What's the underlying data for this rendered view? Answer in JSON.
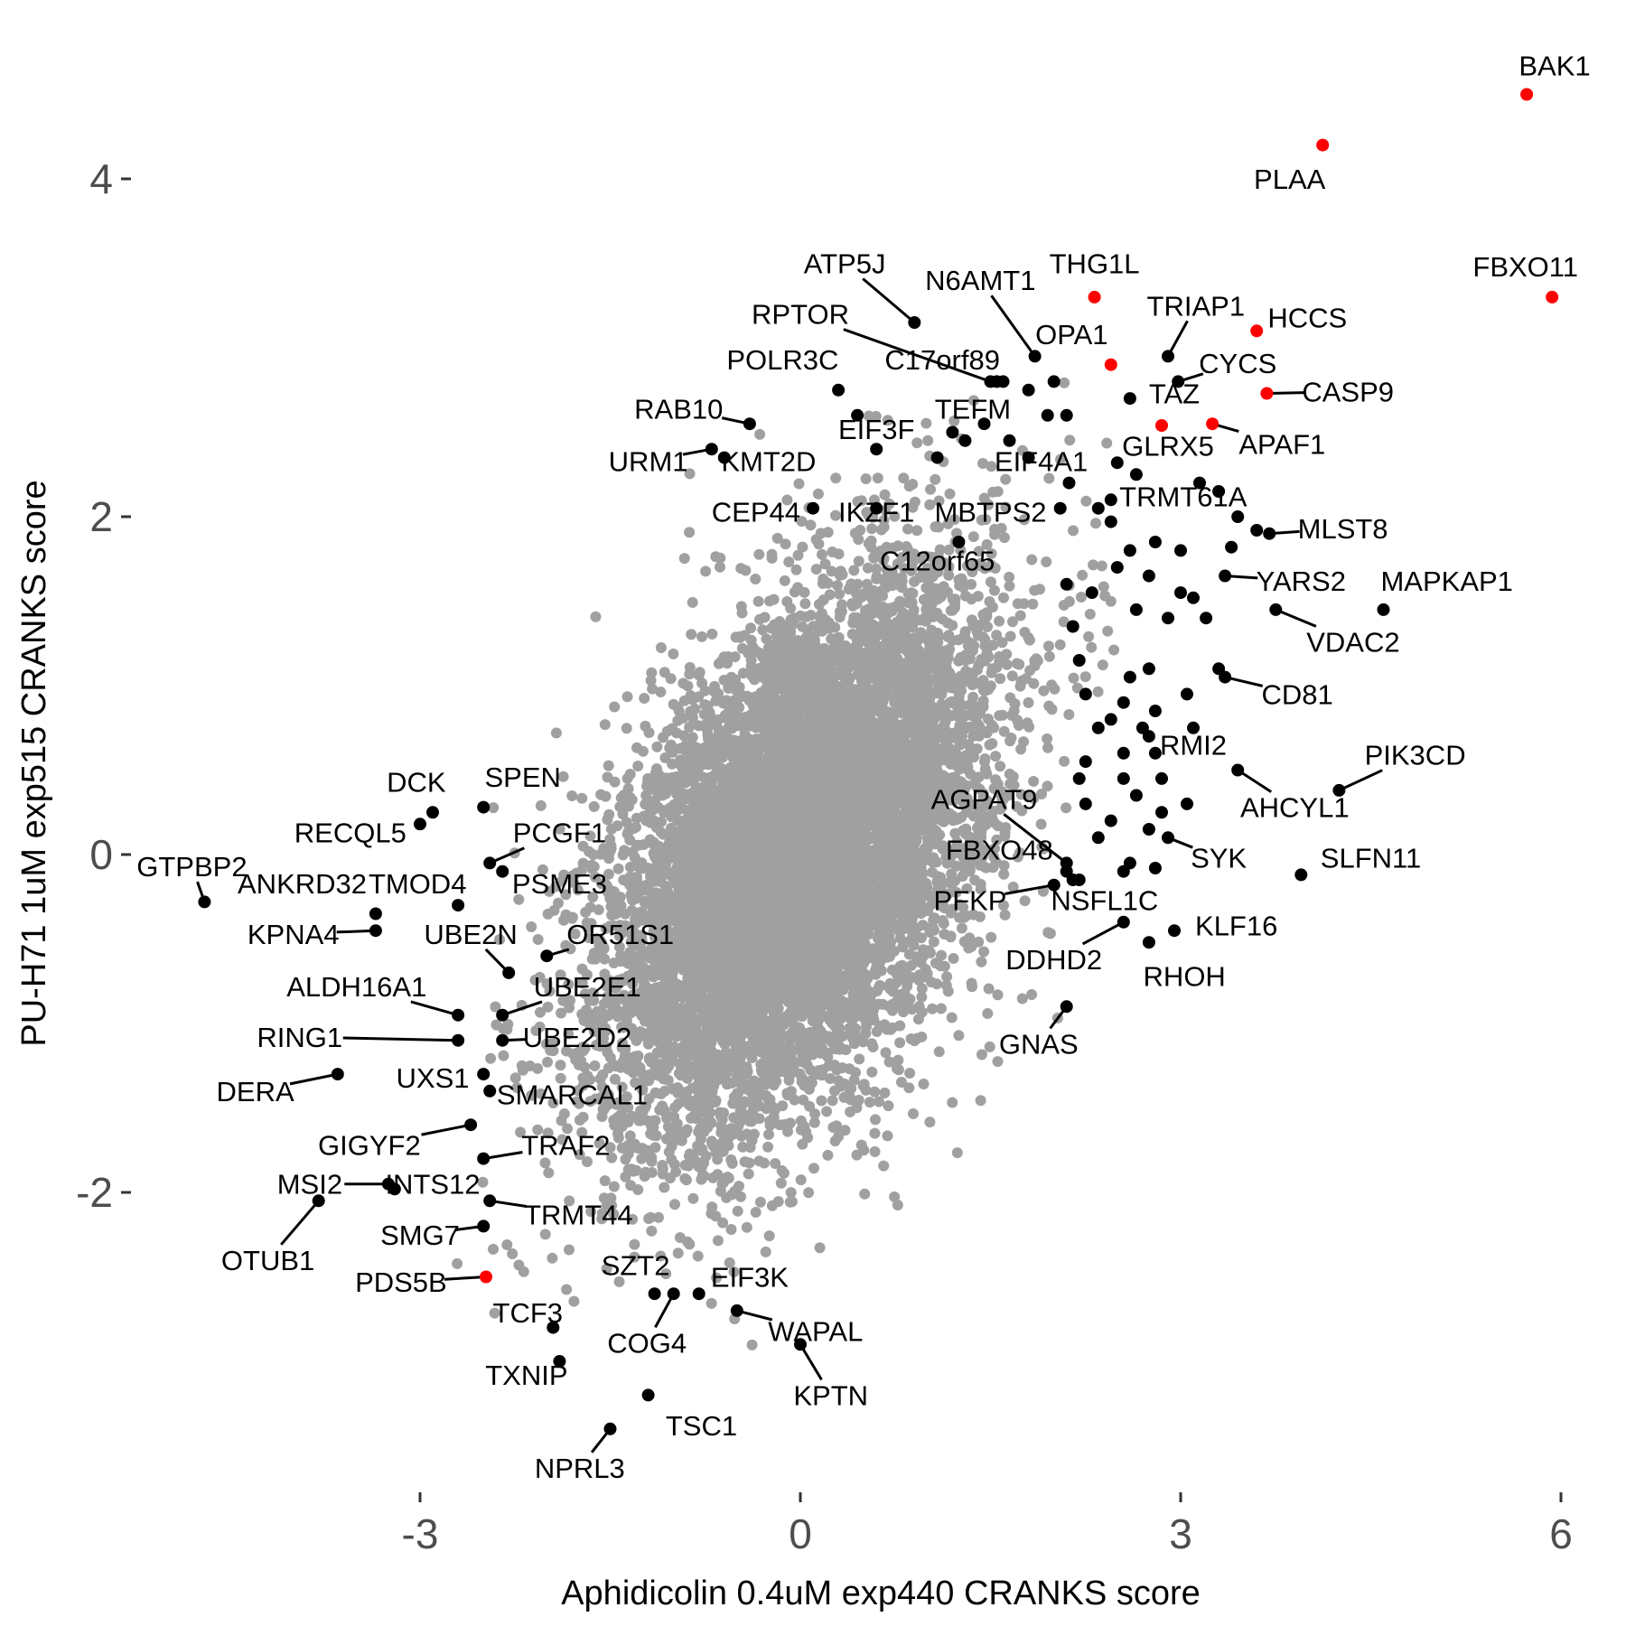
{
  "chart_data": {
    "type": "scatter",
    "title": "",
    "xlabel": "Aphidicolin 0.4uM exp440 CRANKS score",
    "ylabel": "PU-H71 1uM exp515 CRANKS score",
    "xlim": [
      -5.3,
      6.3
    ],
    "ylim": [
      -3.8,
      4.7
    ],
    "x_ticks": [
      {
        "value": -3,
        "label": "-3"
      },
      {
        "value": 0,
        "label": "0"
      },
      {
        "value": 3,
        "label": "3"
      },
      {
        "value": 6,
        "label": "6"
      }
    ],
    "y_ticks": [
      {
        "value": -2,
        "label": "-2"
      },
      {
        "value": 0,
        "label": "0"
      },
      {
        "value": 2,
        "label": "2"
      },
      {
        "value": 4,
        "label": "4"
      }
    ],
    "grid": false,
    "legend": "none",
    "colors": {
      "background": "#ffffff",
      "highlight": "#ff0000",
      "labeled": "#000000",
      "other": "#a0a0a0"
    },
    "background_cloud": {
      "n": 9000,
      "corr": 0.48,
      "sd_x": 0.75,
      "sd_y": 0.8,
      "seed": 12345
    },
    "highlighted": [
      {
        "gene": "BAK1",
        "x": 5.73,
        "y": 4.5,
        "lx": 5.95,
        "ly": 4.67
      },
      {
        "gene": "PLAA",
        "x": 4.12,
        "y": 4.2,
        "lx": 3.86,
        "ly": 4.0
      },
      {
        "gene": "FBXO11",
        "x": 5.93,
        "y": 3.3,
        "lx": 5.72,
        "ly": 3.48
      },
      {
        "gene": "HCCS",
        "x": 3.6,
        "y": 3.1,
        "lx": 4.0,
        "ly": 3.18
      },
      {
        "gene": "THG1L",
        "x": 2.32,
        "y": 3.3,
        "lx": 2.32,
        "ly": 3.5
      },
      {
        "gene": "CASP9",
        "x": 3.68,
        "y": 2.73,
        "lx": 4.32,
        "ly": 2.74
      },
      {
        "gene": "APAF1",
        "x": 3.25,
        "y": 2.55,
        "lx": 3.8,
        "ly": 2.43
      },
      {
        "gene": "TAZ",
        "x": 2.85,
        "y": 2.54,
        "lx": 2.95,
        "ly": 2.73
      },
      {
        "gene": "OPA1",
        "x": 2.45,
        "y": 2.9,
        "lx": 2.14,
        "ly": 3.08
      },
      {
        "gene": "PDS5B",
        "x": -2.48,
        "y": -2.5,
        "lx": -3.15,
        "ly": -2.53
      }
    ],
    "labeled_points": [
      {
        "gene": "ATP5J",
        "x": 0.9,
        "y": 3.15,
        "lx": 0.35,
        "ly": 3.5
      },
      {
        "gene": "N6AMT1",
        "x": 1.85,
        "y": 2.95,
        "lx": 1.42,
        "ly": 3.4
      },
      {
        "gene": "RPTOR",
        "x": 1.5,
        "y": 2.8,
        "lx": 0.0,
        "ly": 3.2
      },
      {
        "gene": "TRIAP1",
        "x": 2.9,
        "y": 2.95,
        "lx": 3.12,
        "ly": 3.25
      },
      {
        "gene": "CYCS",
        "x": 2.98,
        "y": 2.8,
        "lx": 3.45,
        "ly": 2.91
      },
      {
        "gene": "C17orf89",
        "x": 1.55,
        "y": 2.8,
        "lx": 1.12,
        "ly": 2.93
      },
      {
        "gene": "POLR3C",
        "x": 0.3,
        "y": 2.75,
        "lx": -0.14,
        "ly": 2.93
      },
      {
        "gene": "RAB10",
        "x": -0.4,
        "y": 2.55,
        "lx": -0.96,
        "ly": 2.64
      },
      {
        "gene": "TEFM",
        "x": 1.2,
        "y": 2.5,
        "lx": 1.36,
        "ly": 2.64
      },
      {
        "gene": "EIF3F",
        "x": 0.6,
        "y": 2.4,
        "lx": 0.6,
        "ly": 2.52
      },
      {
        "gene": "URM1",
        "x": -0.7,
        "y": 2.4,
        "lx": -1.2,
        "ly": 2.33
      },
      {
        "gene": "KMT2D",
        "x": -0.6,
        "y": 2.35,
        "lx": -0.25,
        "ly": 2.33
      },
      {
        "gene": "GLRX5",
        "x": 2.5,
        "y": 2.32,
        "lx": 2.9,
        "ly": 2.42
      },
      {
        "gene": "EIF4A1",
        "x": 1.8,
        "y": 2.35,
        "lx": 1.9,
        "ly": 2.33
      },
      {
        "gene": "TRMT61A",
        "x": 3.15,
        "y": 2.2,
        "lx": 3.02,
        "ly": 2.12
      },
      {
        "gene": "CEP44",
        "x": 0.1,
        "y": 2.05,
        "lx": -0.35,
        "ly": 2.03
      },
      {
        "gene": "IKZF1",
        "x": 0.6,
        "y": 2.05,
        "lx": 0.6,
        "ly": 2.03
      },
      {
        "gene": "MBTPS2",
        "x": 2.05,
        "y": 2.05,
        "lx": 1.5,
        "ly": 2.03
      },
      {
        "gene": "MLST8",
        "x": 3.7,
        "y": 1.9,
        "lx": 4.28,
        "ly": 1.93
      },
      {
        "gene": "C12orf65",
        "x": 1.25,
        "y": 1.85,
        "lx": 1.08,
        "ly": 1.74
      },
      {
        "gene": "YARS2",
        "x": 3.35,
        "y": 1.65,
        "lx": 3.95,
        "ly": 1.62
      },
      {
        "gene": "MAPKAP1",
        "x": 4.6,
        "y": 1.45,
        "lx": 5.1,
        "ly": 1.62
      },
      {
        "gene": "VDAC2",
        "x": 3.75,
        "y": 1.45,
        "lx": 4.36,
        "ly": 1.26
      },
      {
        "gene": "CD81",
        "x": 3.35,
        "y": 1.05,
        "lx": 3.92,
        "ly": 0.95
      },
      {
        "gene": "RMI2",
        "x": 2.7,
        "y": 0.75,
        "lx": 3.1,
        "ly": 0.65
      },
      {
        "gene": "PIK3CD",
        "x": 4.25,
        "y": 0.38,
        "lx": 4.85,
        "ly": 0.59
      },
      {
        "gene": "AHCYL1",
        "x": 3.45,
        "y": 0.5,
        "lx": 3.9,
        "ly": 0.28
      },
      {
        "gene": "AGPAT9",
        "x": 2.1,
        "y": -0.05,
        "lx": 1.45,
        "ly": 0.33
      },
      {
        "gene": "SYK",
        "x": 2.9,
        "y": 0.1,
        "lx": 3.3,
        "ly": -0.02
      },
      {
        "gene": "SLFN11",
        "x": 3.95,
        "y": -0.12,
        "lx": 4.5,
        "ly": -0.02
      },
      {
        "gene": "FBXO48",
        "x": 2.1,
        "y": -0.1,
        "lx": 1.57,
        "ly": 0.03
      },
      {
        "gene": "NSFL1C",
        "x": 2.2,
        "y": -0.15,
        "lx": 2.4,
        "ly": -0.27
      },
      {
        "gene": "PFKP",
        "x": 2.0,
        "y": -0.18,
        "lx": 1.34,
        "ly": -0.27
      },
      {
        "gene": "KLF16",
        "x": 2.95,
        "y": -0.45,
        "lx": 3.44,
        "ly": -0.42
      },
      {
        "gene": "DDHD2",
        "x": 2.55,
        "y": -0.4,
        "lx": 2.0,
        "ly": -0.62
      },
      {
        "gene": "RHOH",
        "x": 2.75,
        "y": -0.52,
        "lx": 3.03,
        "ly": -0.72
      },
      {
        "gene": "GNAS",
        "x": 2.1,
        "y": -0.9,
        "lx": 1.88,
        "ly": -1.12
      },
      {
        "gene": "DCK",
        "x": -2.9,
        "y": 0.25,
        "lx": -3.03,
        "ly": 0.43
      },
      {
        "gene": "SPEN",
        "x": -2.5,
        "y": 0.28,
        "lx": -2.19,
        "ly": 0.46
      },
      {
        "gene": "RECQL5",
        "x": -3.0,
        "y": 0.18,
        "lx": -3.55,
        "ly": 0.13
      },
      {
        "gene": "PCGF1",
        "x": -2.45,
        "y": -0.05,
        "lx": -1.9,
        "ly": 0.13
      },
      {
        "gene": "GTPBP2",
        "x": -4.7,
        "y": -0.28,
        "lx": -4.8,
        "ly": -0.07
      },
      {
        "gene": "ANKRD32",
        "x": -3.35,
        "y": -0.35,
        "lx": -3.93,
        "ly": -0.17
      },
      {
        "gene": "TMOD4",
        "x": -2.7,
        "y": -0.3,
        "lx": -3.02,
        "ly": -0.17
      },
      {
        "gene": "PSME3",
        "x": -2.35,
        "y": -0.1,
        "lx": -1.9,
        "ly": -0.17
      },
      {
        "gene": "KPNA4",
        "x": -3.35,
        "y": -0.45,
        "lx": -4.0,
        "ly": -0.47
      },
      {
        "gene": "UBE2N",
        "x": -2.3,
        "y": -0.7,
        "lx": -2.6,
        "ly": -0.47
      },
      {
        "gene": "OR51S1",
        "x": -2.0,
        "y": -0.6,
        "lx": -1.42,
        "ly": -0.47
      },
      {
        "gene": "ALDH16A1",
        "x": -2.7,
        "y": -0.95,
        "lx": -3.5,
        "ly": -0.78
      },
      {
        "gene": "UBE2E1",
        "x": -2.35,
        "y": -0.95,
        "lx": -1.68,
        "ly": -0.78
      },
      {
        "gene": "RING1",
        "x": -2.7,
        "y": -1.1,
        "lx": -3.95,
        "ly": -1.08
      },
      {
        "gene": "UBE2D2",
        "x": -2.35,
        "y": -1.1,
        "lx": -1.76,
        "ly": -1.08
      },
      {
        "gene": "DERA",
        "x": -3.65,
        "y": -1.3,
        "lx": -4.3,
        "ly": -1.4
      },
      {
        "gene": "UXS1",
        "x": -2.5,
        "y": -1.3,
        "lx": -2.9,
        "ly": -1.32
      },
      {
        "gene": "SMARCAL1",
        "x": -2.45,
        "y": -1.4,
        "lx": -1.8,
        "ly": -1.42
      },
      {
        "gene": "GIGYF2",
        "x": -2.6,
        "y": -1.6,
        "lx": -3.4,
        "ly": -1.72
      },
      {
        "gene": "TRAF2",
        "x": -2.5,
        "y": -1.8,
        "lx": -1.85,
        "ly": -1.72
      },
      {
        "gene": "MSI2",
        "x": -3.25,
        "y": -1.95,
        "lx": -3.87,
        "ly": -1.95
      },
      {
        "gene": "INTS12",
        "x": -3.2,
        "y": -1.98,
        "lx": -2.9,
        "ly": -1.95
      },
      {
        "gene": "TRMT44",
        "x": -2.45,
        "y": -2.05,
        "lx": -1.75,
        "ly": -2.13
      },
      {
        "gene": "OTUB1",
        "x": -3.8,
        "y": -2.05,
        "lx": -4.2,
        "ly": -2.4
      },
      {
        "gene": "SMG7",
        "x": -2.5,
        "y": -2.2,
        "lx": -3.0,
        "ly": -2.25
      },
      {
        "gene": "SZT2",
        "x": -1.15,
        "y": -2.6,
        "lx": -1.3,
        "ly": -2.43
      },
      {
        "gene": "EIF3K",
        "x": -0.8,
        "y": -2.6,
        "lx": -0.4,
        "ly": -2.5
      },
      {
        "gene": "TCF3",
        "x": -1.95,
        "y": -2.8,
        "lx": -2.15,
        "ly": -2.71
      },
      {
        "gene": "WAPAL",
        "x": -0.5,
        "y": -2.7,
        "lx": 0.12,
        "ly": -2.82
      },
      {
        "gene": "COG4",
        "x": -1.0,
        "y": -2.6,
        "lx": -1.21,
        "ly": -2.89
      },
      {
        "gene": "KPTN",
        "x": 0.0,
        "y": -2.9,
        "lx": 0.24,
        "ly": -3.2
      },
      {
        "gene": "TXNIP",
        "x": -1.9,
        "y": -3.0,
        "lx": -2.16,
        "ly": -3.08
      },
      {
        "gene": "TSC1",
        "x": -1.2,
        "y": -3.2,
        "lx": -0.78,
        "ly": -3.38
      },
      {
        "gene": "NPRL3",
        "x": -1.5,
        "y": -3.4,
        "lx": -1.74,
        "ly": -3.63
      }
    ],
    "unlabeled_black": [
      {
        "x": 1.6,
        "y": 2.8
      },
      {
        "x": 1.8,
        "y": 2.75
      },
      {
        "x": 2.0,
        "y": 2.8
      },
      {
        "x": 2.6,
        "y": 2.7
      },
      {
        "x": 0.45,
        "y": 2.6
      },
      {
        "x": 1.65,
        "y": 2.45
      },
      {
        "x": 1.95,
        "y": 2.6
      },
      {
        "x": 2.1,
        "y": 2.6
      },
      {
        "x": 1.08,
        "y": 2.35
      },
      {
        "x": 2.65,
        "y": 2.25
      },
      {
        "x": 2.12,
        "y": 2.2
      },
      {
        "x": 2.45,
        "y": 2.1
      },
      {
        "x": 2.35,
        "y": 2.05
      },
      {
        "x": 2.45,
        "y": 1.97
      },
      {
        "x": 2.6,
        "y": 1.8
      },
      {
        "x": 2.8,
        "y": 1.85
      },
      {
        "x": 2.5,
        "y": 1.7
      },
      {
        "x": 2.75,
        "y": 1.65
      },
      {
        "x": 3.0,
        "y": 1.8
      },
      {
        "x": 3.45,
        "y": 2.0
      },
      {
        "x": 3.6,
        "y": 1.92
      },
      {
        "x": 3.4,
        "y": 1.82
      },
      {
        "x": 2.1,
        "y": 1.6
      },
      {
        "x": 2.3,
        "y": 1.55
      },
      {
        "x": 2.65,
        "y": 1.45
      },
      {
        "x": 2.9,
        "y": 1.4
      },
      {
        "x": 3.0,
        "y": 1.55
      },
      {
        "x": 3.1,
        "y": 1.52
      },
      {
        "x": 3.2,
        "y": 1.4
      },
      {
        "x": 2.15,
        "y": 1.35
      },
      {
        "x": 2.2,
        "y": 1.15
      },
      {
        "x": 2.6,
        "y": 1.05
      },
      {
        "x": 2.75,
        "y": 1.1
      },
      {
        "x": 2.55,
        "y": 0.9
      },
      {
        "x": 2.25,
        "y": 0.95
      },
      {
        "x": 2.8,
        "y": 0.85
      },
      {
        "x": 3.05,
        "y": 0.95
      },
      {
        "x": 3.3,
        "y": 1.1
      },
      {
        "x": 3.1,
        "y": 0.75
      },
      {
        "x": 2.45,
        "y": 0.8
      },
      {
        "x": 2.35,
        "y": 0.75
      },
      {
        "x": 2.55,
        "y": 0.6
      },
      {
        "x": 2.75,
        "y": 0.7
      },
      {
        "x": 2.25,
        "y": 0.55
      },
      {
        "x": 2.55,
        "y": 0.45
      },
      {
        "x": 2.2,
        "y": 0.45
      },
      {
        "x": 2.8,
        "y": 0.6
      },
      {
        "x": 2.85,
        "y": 0.45
      },
      {
        "x": 2.65,
        "y": 0.35
      },
      {
        "x": 2.25,
        "y": 0.3
      },
      {
        "x": 2.45,
        "y": 0.2
      },
      {
        "x": 2.85,
        "y": 0.25
      },
      {
        "x": 2.75,
        "y": 0.15
      },
      {
        "x": 3.05,
        "y": 0.3
      },
      {
        "x": 2.35,
        "y": 0.1
      },
      {
        "x": 2.6,
        "y": -0.05
      },
      {
        "x": 2.8,
        "y": -0.08
      },
      {
        "x": 2.55,
        "y": -0.1
      },
      {
        "x": 2.15,
        "y": -0.15
      },
      {
        "x": 1.45,
        "y": 2.55
      },
      {
        "x": 1.3,
        "y": 2.45
      },
      {
        "x": 3.3,
        "y": 2.15
      }
    ]
  }
}
